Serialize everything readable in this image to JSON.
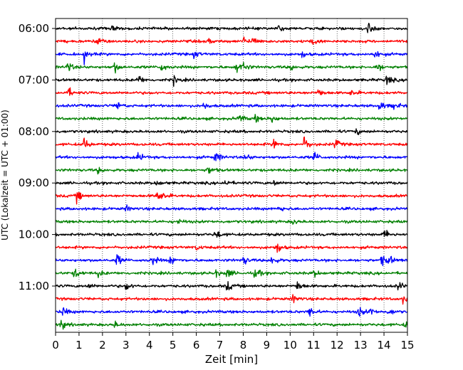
{
  "chart_data": {
    "type": "line",
    "title": "",
    "xlabel": "Zeit  [min]",
    "ylabel": "UTC (Lokalzeit = UTC + 01:00)",
    "xlim": [
      0,
      15
    ],
    "x_ticks": [
      "0",
      "1",
      "2",
      "3",
      "4",
      "5",
      "6",
      "7",
      "8",
      "9",
      "10",
      "11",
      "12",
      "13",
      "14",
      "15"
    ],
    "y_tick_labels": [
      "06:00",
      "07:00",
      "08:00",
      "09:00",
      "10:00",
      "11:00"
    ],
    "trace_start_times": [
      "06:00",
      "06:15",
      "06:30",
      "06:45",
      "07:00",
      "07:15",
      "07:30",
      "07:45",
      "08:00",
      "08:15",
      "08:30",
      "08:45",
      "09:00",
      "09:15",
      "09:30",
      "09:45",
      "10:00",
      "10:15",
      "10:30",
      "10:45",
      "11:00",
      "11:15",
      "11:30",
      "11:45"
    ],
    "trace_minutes_per_line": 15,
    "trace_color_cycle": [
      "#000000",
      "#ff0000",
      "#0000ff",
      "#008000"
    ],
    "vertical_grid": "dotted, every 1 min",
    "events": [
      [
        [
          2.4,
          3
        ],
        [
          13.3,
          8
        ],
        [
          9.5,
          3
        ]
      ],
      [
        [
          1.8,
          6
        ],
        [
          8.0,
          4
        ],
        [
          8.4,
          5
        ],
        [
          10.9,
          5
        ],
        [
          6.5,
          3
        ]
      ],
      [
        [
          1.2,
          7
        ],
        [
          5.9,
          4
        ],
        [
          13.6,
          6
        ],
        [
          10.5,
          3
        ]
      ],
      [
        [
          0.5,
          6
        ],
        [
          2.5,
          6
        ],
        [
          4.5,
          5
        ],
        [
          7.7,
          7
        ],
        [
          8.0,
          5
        ],
        [
          10.0,
          4
        ],
        [
          13.7,
          6
        ]
      ],
      [
        [
          3.5,
          6
        ],
        [
          5.0,
          5
        ],
        [
          14.1,
          6
        ]
      ],
      [
        [
          0.5,
          6
        ],
        [
          11.2,
          5
        ],
        [
          12.6,
          4
        ]
      ],
      [
        [
          2.6,
          5
        ],
        [
          6.3,
          4
        ],
        [
          13.8,
          6
        ],
        [
          14.4,
          4
        ]
      ],
      [
        [
          7.8,
          5
        ],
        [
          8.5,
          4
        ],
        [
          9.2,
          5
        ]
      ],
      [
        [
          12.8,
          3
        ]
      ],
      [
        [
          1.2,
          7
        ],
        [
          9.3,
          6
        ],
        [
          10.6,
          9
        ],
        [
          11.9,
          6
        ]
      ],
      [
        [
          3.5,
          5
        ],
        [
          6.8,
          7
        ],
        [
          8.1,
          4
        ],
        [
          11.0,
          6
        ]
      ],
      [
        [
          1.8,
          3
        ],
        [
          6.5,
          5
        ]
      ],
      [
        [
          4.3,
          3
        ],
        [
          7.2,
          4
        ],
        [
          9.3,
          3
        ]
      ],
      [
        [
          0.9,
          6
        ],
        [
          4.3,
          7
        ],
        [
          4.6,
          3
        ]
      ],
      [
        [
          3.0,
          3
        ],
        [
          9.5,
          3
        ]
      ],
      [
        [
          5.2,
          3
        ],
        [
          10.1,
          3
        ]
      ],
      [
        [
          6.8,
          6
        ],
        [
          14.0,
          6
        ]
      ],
      [
        [
          6.0,
          3
        ],
        [
          9.4,
          7
        ]
      ],
      [
        [
          2.6,
          7
        ],
        [
          4.1,
          6
        ],
        [
          4.9,
          6
        ],
        [
          8.0,
          5
        ],
        [
          9.2,
          6
        ],
        [
          13.9,
          6
        ],
        [
          14.2,
          5
        ]
      ],
      [
        [
          0.8,
          6
        ],
        [
          1.8,
          4
        ],
        [
          6.8,
          4
        ],
        [
          7.3,
          6
        ],
        [
          8.5,
          7
        ],
        [
          11.0,
          4
        ]
      ],
      [
        [
          1.4,
          3
        ],
        [
          3.0,
          5
        ],
        [
          7.3,
          6
        ],
        [
          10.3,
          6
        ],
        [
          14.6,
          5
        ]
      ],
      [
        [
          10.1,
          5
        ],
        [
          14.8,
          4
        ]
      ],
      [
        [
          0.3,
          5
        ],
        [
          10.8,
          7
        ],
        [
          12.9,
          6
        ],
        [
          13.4,
          4
        ],
        [
          14.2,
          4
        ]
      ],
      [
        [
          0.2,
          6
        ],
        [
          2.5,
          3
        ],
        [
          14.9,
          5
        ]
      ]
    ]
  }
}
